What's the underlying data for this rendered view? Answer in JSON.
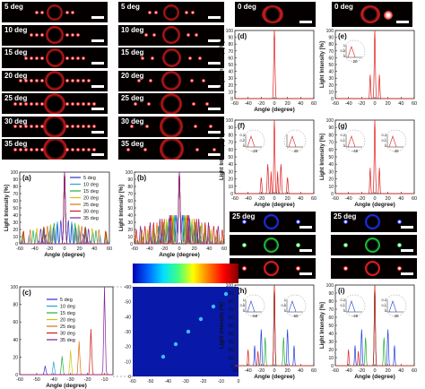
{
  "top_strip_labels": [
    "5 deg",
    "10 deg",
    "15 deg",
    "20 deg",
    "25 deg",
    "30 deg",
    "35 deg"
  ],
  "top_right_labels": [
    "0 deg",
    "0 deg"
  ],
  "bottom_right_labels": [
    "25 deg",
    "25 deg"
  ],
  "colors": {
    "5 deg": "#3030c8",
    "10 deg": "#2aa0e0",
    "15 deg": "#20b040",
    "20 deg": "#d0c010",
    "25 deg": "#e07010",
    "30 deg": "#d01818",
    "35 deg": "#8020a0",
    "single": "#e02020"
  },
  "chart_data": [
    {
      "panel": "(a)",
      "type": "line",
      "xlabel": "Angle (degree)",
      "ylabel": "Light Intensity [%]",
      "xticks": [
        "-60",
        "-40",
        "-20",
        "0",
        "20",
        "40",
        "60"
      ],
      "yticks": [
        "0",
        "10",
        "20",
        "30",
        "40",
        "50",
        "60",
        "70",
        "80",
        "90",
        "100"
      ],
      "xlim": [
        -60,
        60
      ],
      "ylim": [
        0,
        100
      ],
      "legend": [
        "5 deg",
        "10 deg",
        "15 deg",
        "20 deg",
        "25 deg",
        "30 deg",
        "35 deg"
      ],
      "legend_position": "top-right"
    },
    {
      "panel": "(b)",
      "type": "line",
      "xlabel": "Angle (degree)",
      "ylabel": "Light Intensity [%]",
      "xticks": [
        "-60",
        "-40",
        "-20",
        "0",
        "20",
        "40",
        "60"
      ],
      "yticks": [
        "0",
        "10",
        "20",
        "30",
        "40",
        "50",
        "60",
        "70",
        "80",
        "90",
        "100"
      ],
      "xlim": [
        -60,
        60
      ],
      "ylim": [
        0,
        100
      ]
    },
    {
      "panel": "(c)",
      "type": "line",
      "xlabel": "Angle (degree)",
      "ylabel": "",
      "xticks": [
        "-60",
        "-50",
        "-40",
        "-30",
        "-20",
        "-10"
      ],
      "yticks": [
        "0",
        "20",
        "40",
        "60",
        "80",
        "100"
      ],
      "xlim": [
        -60,
        -5
      ],
      "ylim": [
        0,
        100
      ],
      "legend": [
        "5 deg",
        "10 deg",
        "15 deg",
        "20 deg",
        "25 deg",
        "30 deg",
        "35 deg"
      ],
      "legend_position": "top-left",
      "peaks": [
        {
          "x": -45,
          "y": 10
        },
        {
          "x": -40,
          "y": 15
        },
        {
          "x": -35,
          "y": 21
        },
        {
          "x": -30,
          "y": 28
        },
        {
          "x": -25,
          "y": 38
        },
        {
          "x": -18,
          "y": 52
        },
        {
          "x": -10,
          "y": 100
        }
      ]
    },
    {
      "panel": "map",
      "type": "heatmap",
      "xticks": [
        "-60",
        "-50",
        "-40",
        "-30",
        "-20",
        "-10",
        "0"
      ],
      "yticks": [
        "-60",
        "-50",
        "-40",
        "-30",
        "-20",
        "-10",
        "0"
      ],
      "colorbar": "rainbow"
    },
    {
      "panel": "(d)",
      "type": "line",
      "xlabel": "Angle (degree)",
      "ylabel": "Light Intensity [%]",
      "xticks": [
        "-60",
        "-40",
        "-20",
        "0",
        "20",
        "40",
        "60"
      ],
      "yticks": [
        "0",
        "10",
        "20",
        "30",
        "40",
        "50",
        "60",
        "70",
        "80",
        "90",
        "100"
      ],
      "xlim": [
        -60,
        60
      ],
      "ylim": [
        0,
        100
      ]
    },
    {
      "panel": "(e)",
      "type": "line",
      "xlabel": "",
      "ylabel": "Light Intensity [%]",
      "xticks": [
        "-60",
        "-40",
        "-20",
        "0",
        "20",
        "40",
        "60"
      ],
      "yticks": [
        "0",
        "10",
        "20",
        "30",
        "40",
        "50",
        "60",
        "70",
        "80",
        "90",
        "100"
      ],
      "xlim": [
        -60,
        60
      ],
      "ylim": [
        0,
        100
      ],
      "inset": {
        "yticks": [
          "0",
          "0.5",
          "1"
        ],
        "xtick": "20"
      }
    },
    {
      "panel": "(f)",
      "type": "line",
      "xlabel": "Angle (degree)",
      "ylabel": "Light Intensity [%]",
      "xticks": [
        "-60",
        "-40",
        "-20",
        "0",
        "20",
        "40",
        "60"
      ],
      "yticks": [
        "0",
        "10",
        "20",
        "30",
        "40",
        "50",
        "60",
        "70",
        "80",
        "90",
        "100"
      ],
      "xlim": [
        -60,
        60
      ],
      "ylim": [
        0,
        100
      ],
      "insets": [
        {
          "yticks": [
            "0",
            "0.2",
            "0.3"
          ],
          "xtick": "-20"
        },
        {
          "xtick": "40"
        }
      ]
    },
    {
      "panel": "(g)",
      "type": "line",
      "xlabel": "Angle (degree)",
      "ylabel": "Light Intensity [%]",
      "xticks": [
        "-60",
        "-40",
        "-20",
        "0",
        "20",
        "40",
        "60"
      ],
      "yticks": [
        "0",
        "10",
        "20",
        "30",
        "40",
        "50",
        "60",
        "70",
        "80",
        "90",
        "100"
      ],
      "xlim": [
        -60,
        60
      ],
      "ylim": [
        0,
        100
      ],
      "insets": [
        {
          "yticks": [
            "0",
            "0.1",
            "0.2"
          ],
          "xtick": "-40"
        },
        {
          "yticks": [
            "0",
            "0.1",
            "0.2"
          ],
          "xtick": "40"
        }
      ]
    },
    {
      "panel": "(h)",
      "type": "line",
      "xlabel": "Angle (degree)",
      "ylabel": "Light Intensity [%]",
      "xticks": [
        "-60",
        "-40",
        "-20",
        "0",
        "20",
        "40",
        "60"
      ],
      "yticks": [
        "0",
        "10",
        "20",
        "30",
        "40",
        "50",
        "60",
        "70",
        "80",
        "90",
        "100"
      ],
      "xlim": [
        -60,
        60
      ],
      "ylim": [
        0,
        100
      ],
      "insets": [
        {
          "yticks": [
            "0",
            "0.5",
            "1"
          ],
          "xtick": "-50"
        },
        {
          "yticks": [
            "0",
            "0.5",
            "1"
          ],
          "xtick": "60"
        }
      ]
    },
    {
      "panel": "(i)",
      "type": "line",
      "xlabel": "Angle (degree)",
      "ylabel": "Light Intensity [%]",
      "xticks": [
        "-60",
        "-40",
        "-20",
        "0",
        "20",
        "40",
        "60"
      ],
      "yticks": [
        "0",
        "10",
        "20",
        "30",
        "40",
        "50",
        "60",
        "70",
        "80",
        "90",
        "100"
      ],
      "xlim": [
        -60,
        60
      ],
      "ylim": [
        0,
        100
      ],
      "insets": [
        {
          "yticks": [
            "0",
            "0.1",
            "0.2"
          ],
          "xtick": "-40"
        },
        {
          "yticks": [
            "0",
            "0.1",
            "0.2"
          ],
          "xtick": "40"
        }
      ]
    }
  ]
}
